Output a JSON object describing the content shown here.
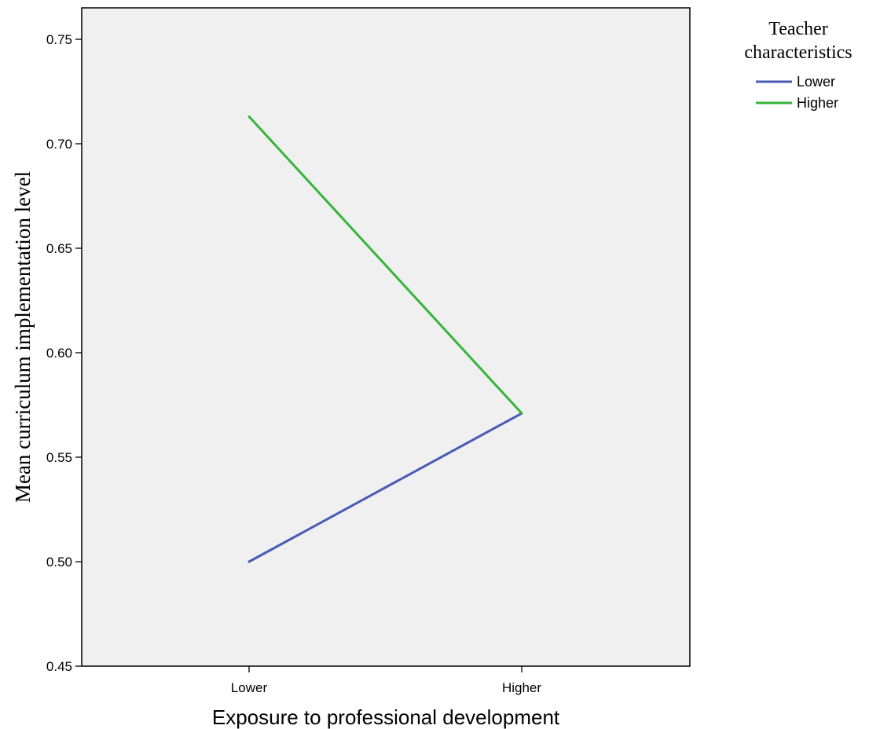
{
  "chart_data": {
    "type": "line",
    "categories": [
      "Lower",
      "Higher"
    ],
    "series": [
      {
        "name": "Lower",
        "values": [
          0.5,
          0.571
        ],
        "color": "#4a5ab5"
      },
      {
        "name": "Higher",
        "values": [
          0.713,
          0.571
        ],
        "color": "#34b53a"
      }
    ],
    "xlabel": "Exposure to professional development",
    "ylabel": "Mean curriculum implementation level",
    "ylim": [
      0.45,
      0.76
    ],
    "yticks": [
      "0.45",
      "0.50",
      "0.55",
      "0.60",
      "0.65",
      "0.70",
      "0.75"
    ],
    "plot_background": "#f0f0f0",
    "grid": false,
    "legend": {
      "title_line1": "Teacher",
      "title_line2": "characteristics",
      "placement": "right"
    }
  }
}
